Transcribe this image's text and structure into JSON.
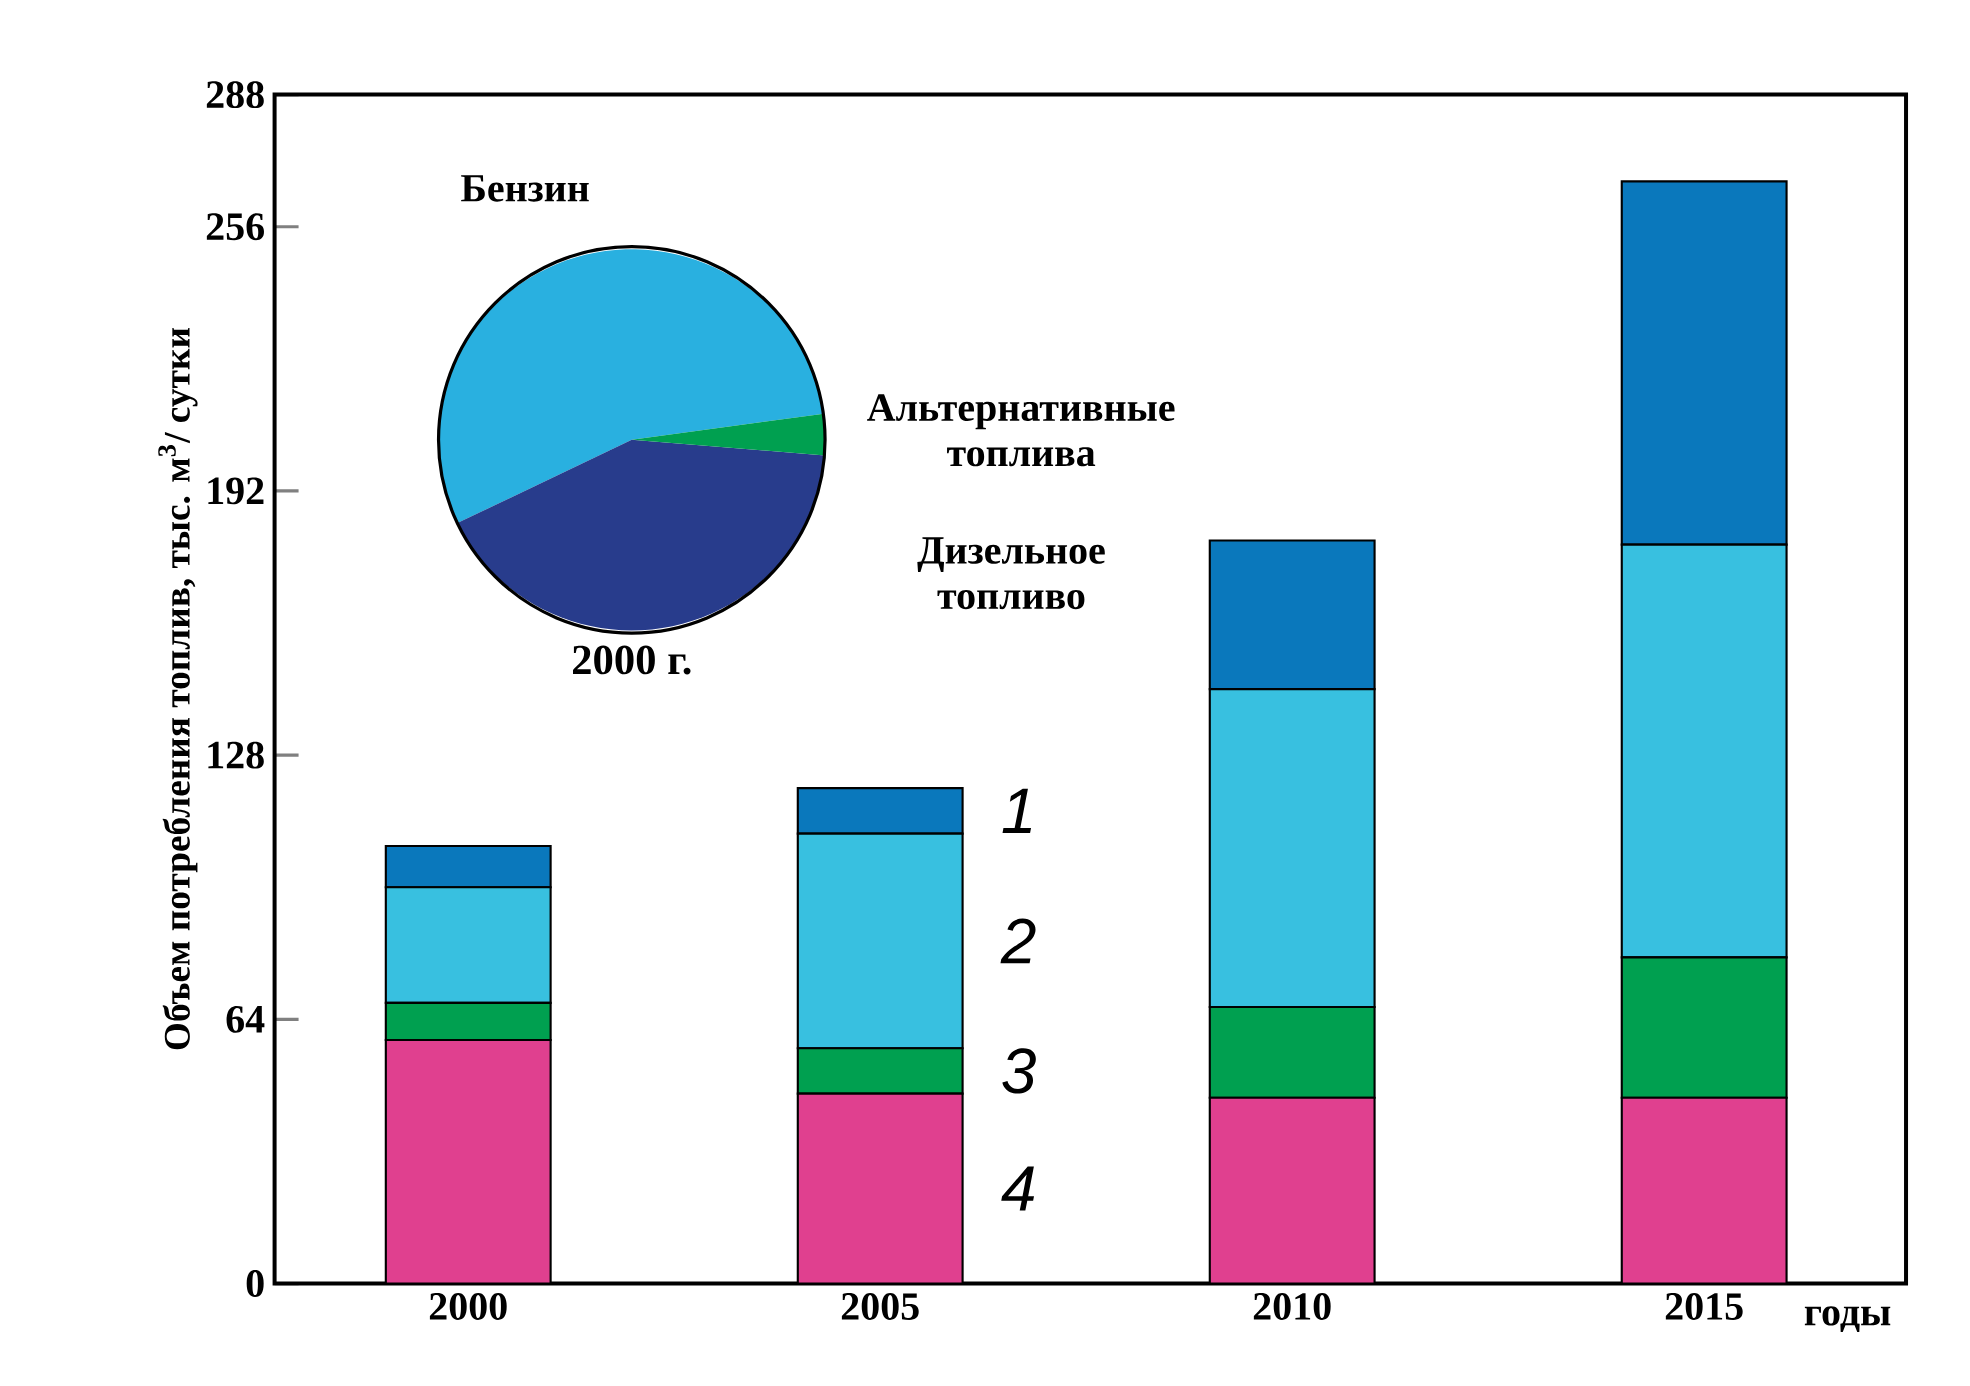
{
  "chart_data": [
    {
      "type": "bar",
      "stacked": true,
      "ylabel": "Объем потребления топлив, тыс. м$^{3}$/ сутки",
      "xlabel": "годы",
      "categories": [
        "2000",
        "2005",
        "2010",
        "2015"
      ],
      "ylim": [
        0,
        288
      ],
      "yticks": [
        0,
        64,
        128,
        192,
        256,
        288
      ],
      "legend": false,
      "series": [
        {
          "name": "4",
          "color": "#e0408f",
          "values": [
            59,
            46,
            45,
            45
          ]
        },
        {
          "name": "3",
          "color": "#00a050",
          "values": [
            9,
            11,
            22,
            34
          ]
        },
        {
          "name": "2",
          "color": "#38c0e0",
          "values": [
            28,
            52,
            77,
            100
          ]
        },
        {
          "name": "1",
          "color": "#0a78bc",
          "values": [
            10,
            11,
            36,
            88
          ]
        }
      ]
    },
    {
      "type": "pie",
      "title": "2000 г.",
      "categories": [
        "Бензин",
        "Дизельное топливо",
        "Альтернативные топлива"
      ],
      "values": [
        55,
        41.5,
        3.5
      ],
      "colors": [
        "#29b0e0",
        "#283c8c",
        "#00a050"
      ]
    }
  ]
}
